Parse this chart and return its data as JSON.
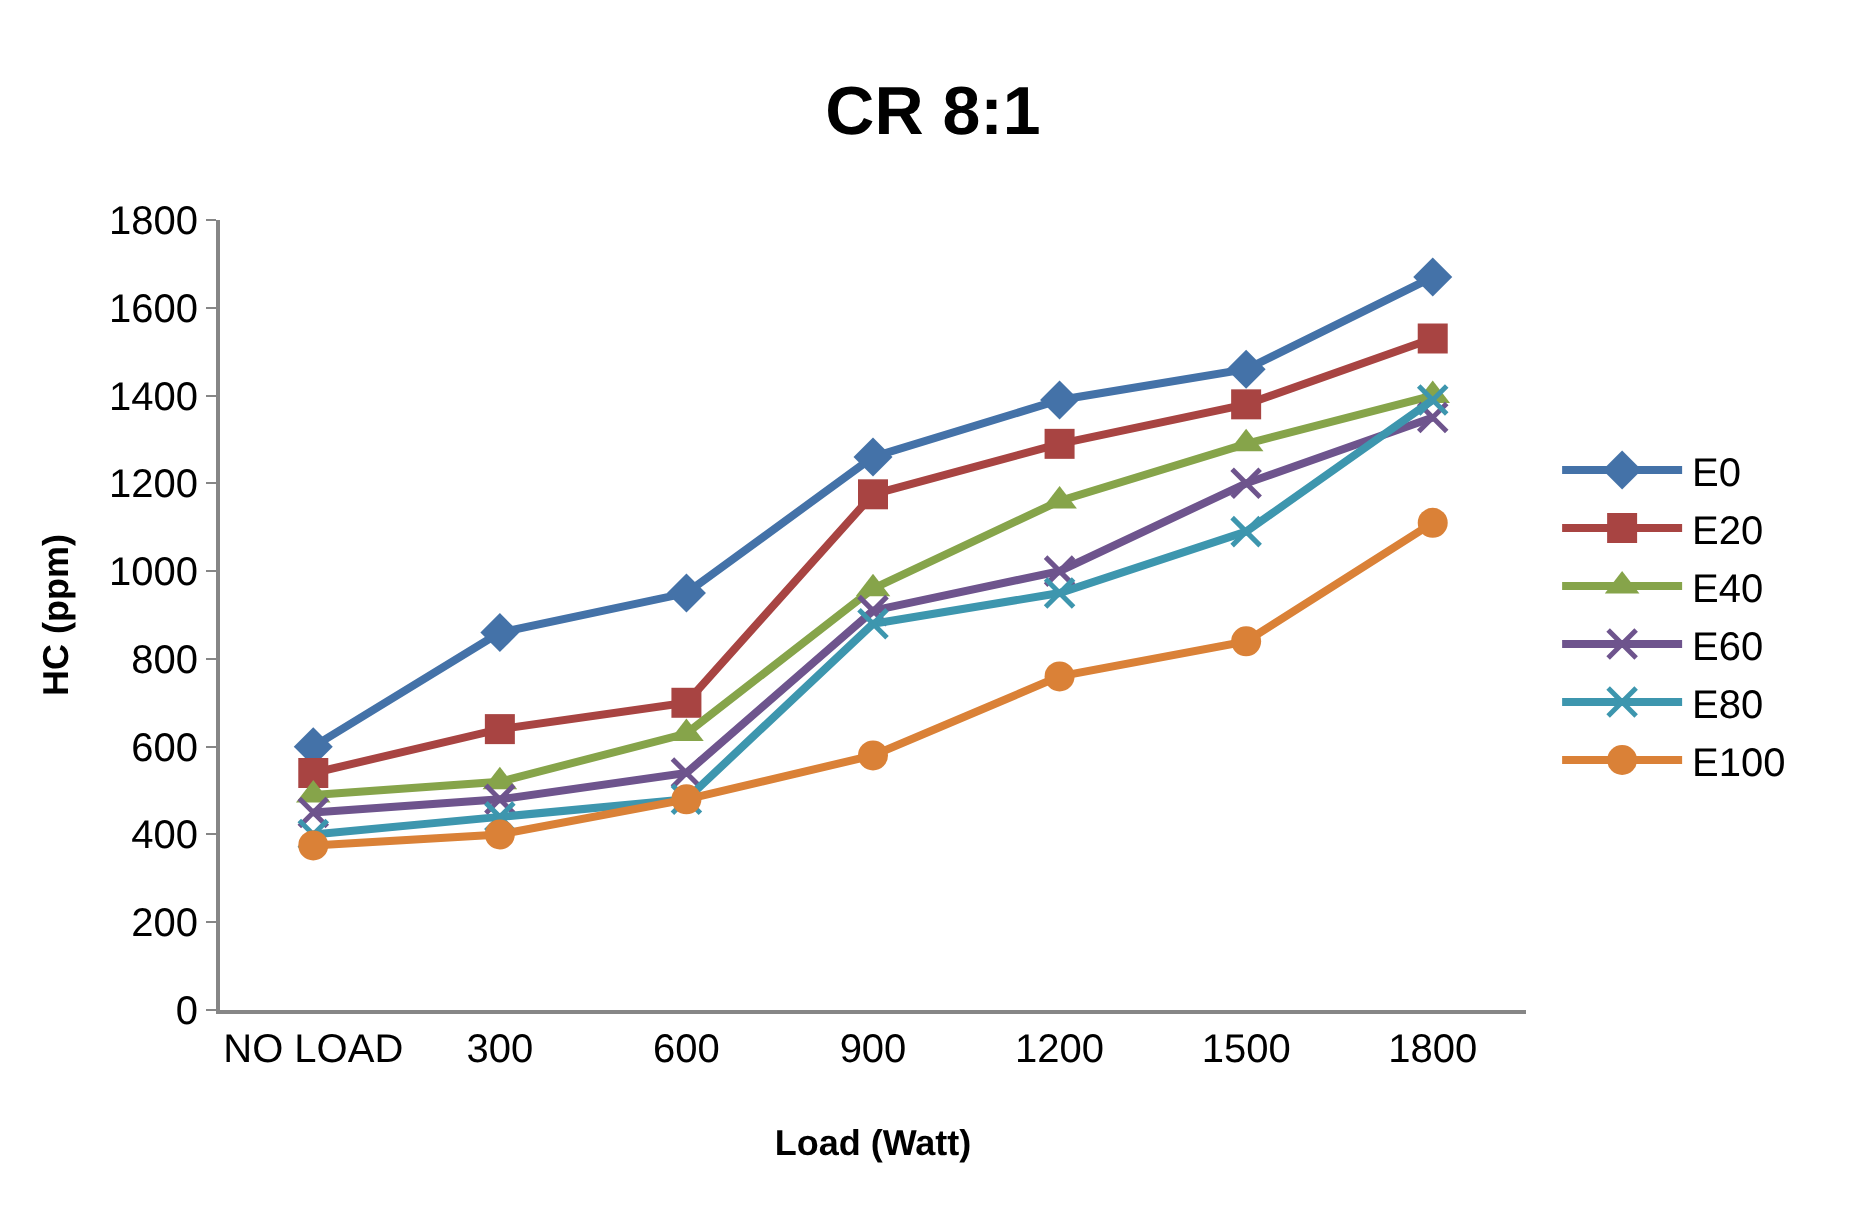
{
  "chart_data": {
    "type": "line",
    "title": "CR 8:1",
    "xlabel": "Load (Watt)",
    "ylabel": "HC (ppm)",
    "categories": [
      "NO LOAD",
      "300",
      "600",
      "900",
      "1200",
      "1500",
      "1800"
    ],
    "series": [
      {
        "name": "E0",
        "color": "#4472a8",
        "marker": "diamond",
        "values": [
          600,
          860,
          950,
          1260,
          1390,
          1460,
          1670
        ]
      },
      {
        "name": "E20",
        "color": "#a84442",
        "marker": "square",
        "values": [
          540,
          640,
          700,
          1175,
          1290,
          1380,
          1530
        ]
      },
      {
        "name": "E40",
        "color": "#86a44a",
        "marker": "triangle",
        "values": [
          490,
          520,
          630,
          960,
          1160,
          1290,
          1400
        ]
      },
      {
        "name": "E60",
        "color": "#6e548d",
        "marker": "cross",
        "values": [
          450,
          480,
          540,
          910,
          1000,
          1200,
          1350
        ]
      },
      {
        "name": "E80",
        "color": "#3d96ae",
        "marker": "cross",
        "values": [
          400,
          440,
          480,
          880,
          950,
          1090,
          1390
        ]
      },
      {
        "name": "E100",
        "color": "#da8137",
        "marker": "circle",
        "values": [
          375,
          400,
          480,
          580,
          760,
          840,
          1110
        ]
      }
    ],
    "ylim": [
      0,
      1800
    ],
    "yticks": [
      0,
      200,
      400,
      600,
      800,
      1000,
      1200,
      1400,
      1600,
      1800
    ],
    "grid": false,
    "legend": "right",
    "line_style": "solid"
  }
}
